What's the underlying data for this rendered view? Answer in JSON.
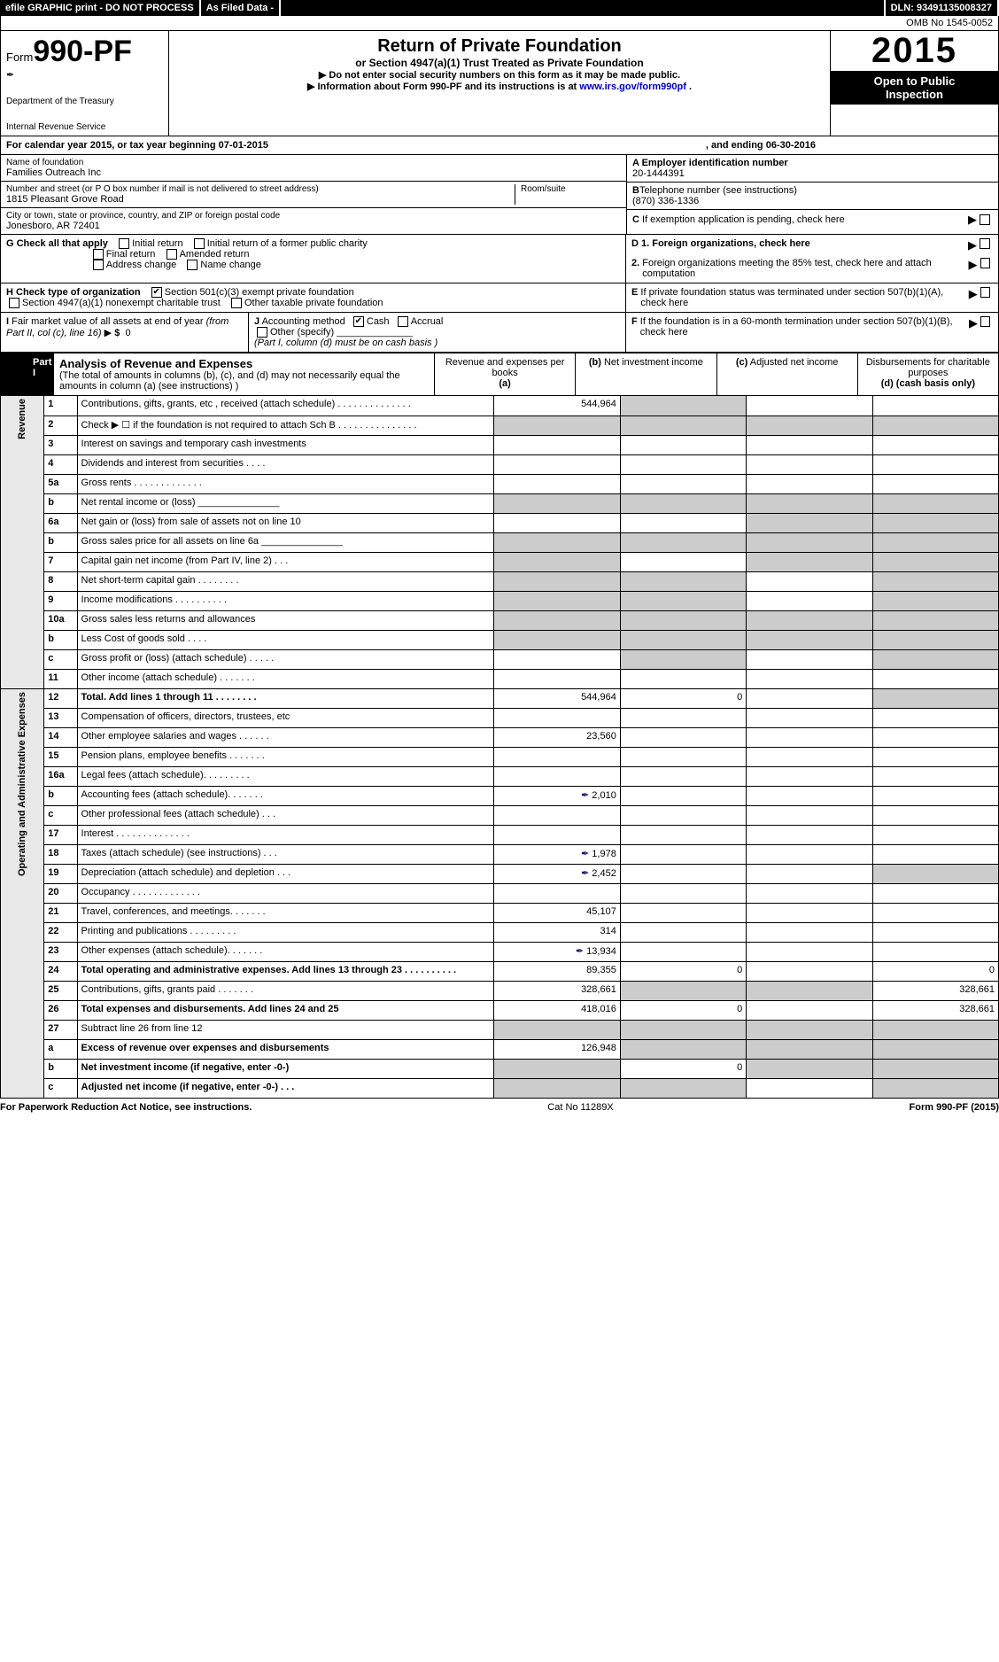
{
  "topbar": {
    "efile": "efile GRAPHIC print - DO NOT PROCESS",
    "asfiled": "As Filed Data -",
    "dln_label": "DLN:",
    "dln": "93491135008327"
  },
  "omb": "OMB No 1545-0052",
  "header": {
    "form_prefix": "Form",
    "form_number": "990-PF",
    "dept1": "Department of the Treasury",
    "dept2": "Internal Revenue Service",
    "title": "Return of Private Foundation",
    "subtitle": "or Section 4947(a)(1) Trust Treated as Private Foundation",
    "note1": "▶ Do not enter social security numbers on this form as it may be made public.",
    "note2": "▶ Information about Form 990-PF and its instructions is at",
    "note2_link": "www.irs.gov/form990pf",
    "year": "2015",
    "open1": "Open to Public",
    "open2": "Inspection"
  },
  "calendar": {
    "text1": "For calendar year 2015, or tax year beginning",
    "begin": "07-01-2015",
    "text2": ", and ending",
    "end": "06-30-2016"
  },
  "entity": {
    "name_lbl": "Name of foundation",
    "name": "Families Outreach Inc",
    "addr_lbl": "Number and street (or P O  box number if mail is not delivered to street address)",
    "addr": "1815 Pleasant Grove Road",
    "room_lbl": "Room/suite",
    "city_lbl": "City or town, state or province, country, and ZIP or foreign postal code",
    "city": "Jonesboro, AR  72401",
    "ein_lbl": "A Employer identification number",
    "ein": "20-1444391",
    "tel_lbl": "B",
    "tel_text": "Telephone number (see instructions)",
    "tel": "(870) 336-1336",
    "c_lbl": "C",
    "c_text": "If exemption application is pending, check here"
  },
  "g": {
    "label": "G Check all that apply",
    "initial": "Initial return",
    "initial_former": "Initial return of a former public charity",
    "final": "Final return",
    "amended": "Amended return",
    "address": "Address change",
    "name": "Name change"
  },
  "d": {
    "d1": "D 1.  Foreign organizations, check here",
    "d2a": "2.",
    "d2": "Foreign organizations meeting the 85% test, check here and attach computation"
  },
  "e": {
    "lbl": "E",
    "text": "If private foundation status was terminated under section 507(b)(1)(A), check here"
  },
  "h": {
    "label": "H Check type of organization",
    "opt1": "Section 501(c)(3) exempt private foundation",
    "opt2": "Section 4947(a)(1) nonexempt charitable trust",
    "opt3": "Other taxable private foundation"
  },
  "i": {
    "label": "I",
    "text1": "Fair market value of all assets at end of year",
    "text2": "(from Part II, col  (c), line 16)",
    "arrow": "▶",
    "amt_lbl": "$",
    "amt": "0"
  },
  "j": {
    "label": "J",
    "text": "Accounting method",
    "cash": "Cash",
    "accrual": "Accrual",
    "other": "Other (specify)",
    "note": "(Part I, column (d) must be on cash basis )"
  },
  "f": {
    "lbl": "F",
    "text": "If the foundation is in a 60-month termination under section 507(b)(1)(B), check here"
  },
  "part1": {
    "tab": "Part I",
    "title": "Analysis of Revenue and Expenses",
    "subtitle": "(The total of amounts in columns (b), (c), and (d) may not necessarily equal the amounts in column (a) (see instructions) )",
    "col_a": "Revenue and expenses per books",
    "col_a_pre": "(a)",
    "col_b": "Net investment income",
    "col_b_pre": "(b)",
    "col_c": "Adjusted net income",
    "col_c_pre": "(c)",
    "col_d": "Disbursements for charitable purposes",
    "col_d_note": "(d) (cash basis only)"
  },
  "side": {
    "revenue": "Revenue",
    "expenses": "Operating and Administrative Expenses"
  },
  "rows": [
    {
      "n": "1",
      "t": "Contributions, gifts, grants, etc , received (attach schedule)   .  .  .  .  .  .  .  .  .  .  .  .  .  .",
      "a": "544,964",
      "b_gray": true
    },
    {
      "n": "2",
      "t": "Check ▶ ☐ if the foundation is not required to attach Sch B   .  .  .  .  .  .  .  .  .  .  .  .  .  .  .",
      "a_gray": true,
      "b_gray": true,
      "c_gray": true,
      "d_gray": true,
      "bold_not": true
    },
    {
      "n": "3",
      "t": "Interest on savings and temporary cash investments"
    },
    {
      "n": "4",
      "t": "Dividends and interest from securities   .  .  .  ."
    },
    {
      "n": "5a",
      "t": "Gross rents .  .  .  .  .  .  .  .  .  .  .  .  ."
    },
    {
      "n": "b",
      "t": "Net rental income or (loss) _______________",
      "a_gray": true,
      "b_gray": true,
      "c_gray": true,
      "d_gray": true
    },
    {
      "n": "6a",
      "t": "Net gain or (loss) from sale of assets not on line 10",
      "c_gray": true,
      "d_gray": true
    },
    {
      "n": "b",
      "t": "Gross sales price for all assets on line 6a _______________",
      "a_gray": true,
      "b_gray": true,
      "c_gray": true,
      "d_gray": true
    },
    {
      "n": "7",
      "t": "Capital gain net income (from Part IV, line 2) .  .  .",
      "a_gray": true,
      "c_gray": true,
      "d_gray": true
    },
    {
      "n": "8",
      "t": "Net short-term capital gain .  .  .  .  .  .  .  .",
      "a_gray": true,
      "b_gray": true,
      "d_gray": true
    },
    {
      "n": "9",
      "t": "Income modifications .  .  .  .  .  .  .  .  .  .",
      "a_gray": true,
      "b_gray": true,
      "d_gray": true
    },
    {
      "n": "10a",
      "t": "Gross sales less returns and allowances",
      "inset": true,
      "a_gray": true,
      "b_gray": true,
      "c_gray": true,
      "d_gray": true
    },
    {
      "n": "b",
      "t": "Less  Cost of goods sold .  .  .  .",
      "inset": true,
      "a_gray": true,
      "b_gray": true,
      "c_gray": true,
      "d_gray": true
    },
    {
      "n": "c",
      "t": "Gross profit or (loss) (attach schedule) .  .  .  .  .",
      "b_gray": true,
      "d_gray": true
    },
    {
      "n": "11",
      "t": "Other income (attach schedule)   .  .  .  .  .  .  ."
    },
    {
      "n": "12",
      "t": "Total. Add lines 1 through 11   .  .  .  .  .  .  .  .",
      "bold": true,
      "a": "544,964",
      "b": "0",
      "d_gray": true
    },
    {
      "n": "13",
      "t": "Compensation of officers, directors, trustees, etc"
    },
    {
      "n": "14",
      "t": "Other employee salaries and wages .  .  .  .  .  .",
      "a": "23,560"
    },
    {
      "n": "15",
      "t": "Pension plans, employee benefits .  .  .  .  .  .  ."
    },
    {
      "n": "16a",
      "t": "Legal fees (attach schedule).  .  .  .  .  .  .  .  ."
    },
    {
      "n": "b",
      "t": "Accounting fees (attach schedule).  .  .  .  .  .  .",
      "a": "2,010",
      "icon": true
    },
    {
      "n": "c",
      "t": "Other professional fees (attach schedule)  .  .  ."
    },
    {
      "n": "17",
      "t": "Interest  .  .  .  .  .  .  .  .  .  .  .  .  .  ."
    },
    {
      "n": "18",
      "t": "Taxes (attach schedule) (see instructions)   .  .  .",
      "a": "1,978",
      "icon": true
    },
    {
      "n": "19",
      "t": "Depreciation (attach schedule) and depletion .  .  .",
      "a": "2,452",
      "icon": true,
      "d_gray": true
    },
    {
      "n": "20",
      "t": "Occupancy .  .  .  .  .  .  .  .  .  .  .  .  ."
    },
    {
      "n": "21",
      "t": "Travel, conferences, and meetings.  .  .  .  .  .  .",
      "a": "45,107"
    },
    {
      "n": "22",
      "t": "Printing and publications .  .  .  .  .  .  .  .  .",
      "a": "314"
    },
    {
      "n": "23",
      "t": "Other expenses (attach schedule).  .  .  .  .  .  .",
      "a": "13,934",
      "icon": true
    },
    {
      "n": "24",
      "t": "Total operating and administrative expenses. Add lines 13 through 23  .  .  .  .  .  .  .  .  .  .",
      "bold": true,
      "a": "89,355",
      "b": "0",
      "d": "0"
    },
    {
      "n": "25",
      "t": "Contributions, gifts, grants paid   .  .  .  .  .  .  .",
      "a": "328,661",
      "b_gray": true,
      "c_gray": true,
      "d": "328,661"
    },
    {
      "n": "26",
      "t": "Total expenses and disbursements. Add lines 24 and 25",
      "bold": true,
      "a": "418,016",
      "b": "0",
      "d": "328,661"
    },
    {
      "n": "27",
      "t": "Subtract line 26 from line 12",
      "a_gray": true,
      "b_gray": true,
      "c_gray": true,
      "d_gray": true
    },
    {
      "n": "a",
      "t": "Excess of revenue over expenses and disbursements",
      "bold": true,
      "a": "126,948",
      "b_gray": true,
      "c_gray": true,
      "d_gray": true
    },
    {
      "n": "b",
      "t": "Net investment income (if negative, enter -0-)",
      "bold": true,
      "a_gray": true,
      "b": "0",
      "c_gray": true,
      "d_gray": true
    },
    {
      "n": "c",
      "t": "Adjusted net income (if negative, enter -0-)   .  .  .",
      "bold": true,
      "a_gray": true,
      "b_gray": true,
      "d_gray": true
    }
  ],
  "footer": {
    "left": "For Paperwork Reduction Act Notice, see instructions.",
    "mid": "Cat No 11289X",
    "right": "Form 990-PF (2015)"
  }
}
